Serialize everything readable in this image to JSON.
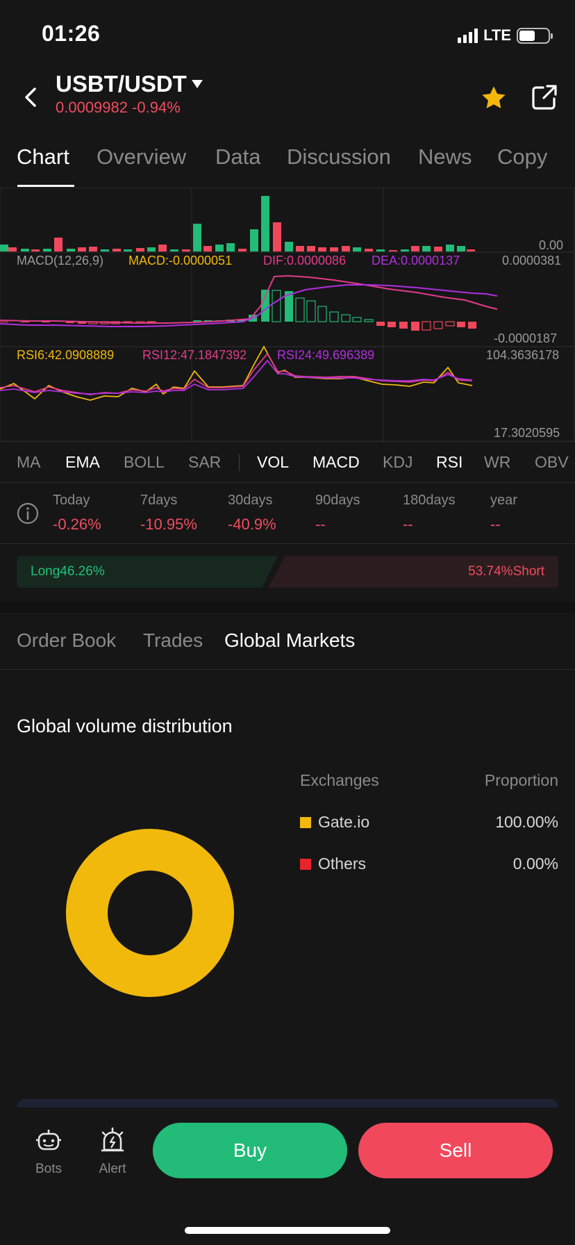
{
  "status": {
    "time": "01:26",
    "network": "LTE"
  },
  "header": {
    "pair": "USBT/USDT",
    "price_change": "0.0009982 -0.94%"
  },
  "tabs": [
    "Chart",
    "Overview",
    "Data",
    "Discussion",
    "News",
    "Copy"
  ],
  "chart": {
    "vol_zero": "0.00",
    "macd_name": "MACD(12,26,9)",
    "macd_value": "MACD:-0.0000051",
    "dif_value": "DIF:0.0000086",
    "dea_value": "DEA:0.0000137",
    "macd_high": "0.0000381",
    "macd_low": "-0.0000187",
    "rsi6": "RSI6:42.0908889",
    "rsi12": "RSI12:47.1847392",
    "rsi24": "RSI24:49.696389",
    "rsi_high": "104.3636178",
    "rsi_low": "17.3020595"
  },
  "indicators": [
    "MA",
    "EMA",
    "BOLL",
    "SAR",
    "VOL",
    "MACD",
    "KDJ",
    "RSI",
    "WR",
    "OBV"
  ],
  "performance": [
    {
      "label": "Today",
      "value": "-0.26%"
    },
    {
      "label": "7days",
      "value": "-10.95%"
    },
    {
      "label": "30days",
      "value": "-40.9%"
    },
    {
      "label": "90days",
      "value": "--"
    },
    {
      "label": "180days",
      "value": "--"
    },
    {
      "label": "year",
      "value": "--"
    }
  ],
  "long_short": {
    "long": "Long46.26%",
    "short": "53.74%Short",
    "long_pct": 46.26
  },
  "subtabs": [
    "Order Book",
    "Trades",
    "Global Markets"
  ],
  "global_volume": {
    "title": "Global volume distribution",
    "col_exchanges": "Exchanges",
    "col_proportion": "Proportion",
    "rows": [
      {
        "name": "Gate.io",
        "value": "100.00%",
        "color": "#f0b90b"
      },
      {
        "name": "Others",
        "value": "0.00%",
        "color": "#e8242c"
      }
    ]
  },
  "bottom": {
    "bots": "Bots",
    "alert": "Alert",
    "buy": "Buy",
    "sell": "Sell"
  },
  "colors": {
    "up": "#22bb78",
    "down": "#f1485c",
    "accent": "#f0b90b"
  }
}
